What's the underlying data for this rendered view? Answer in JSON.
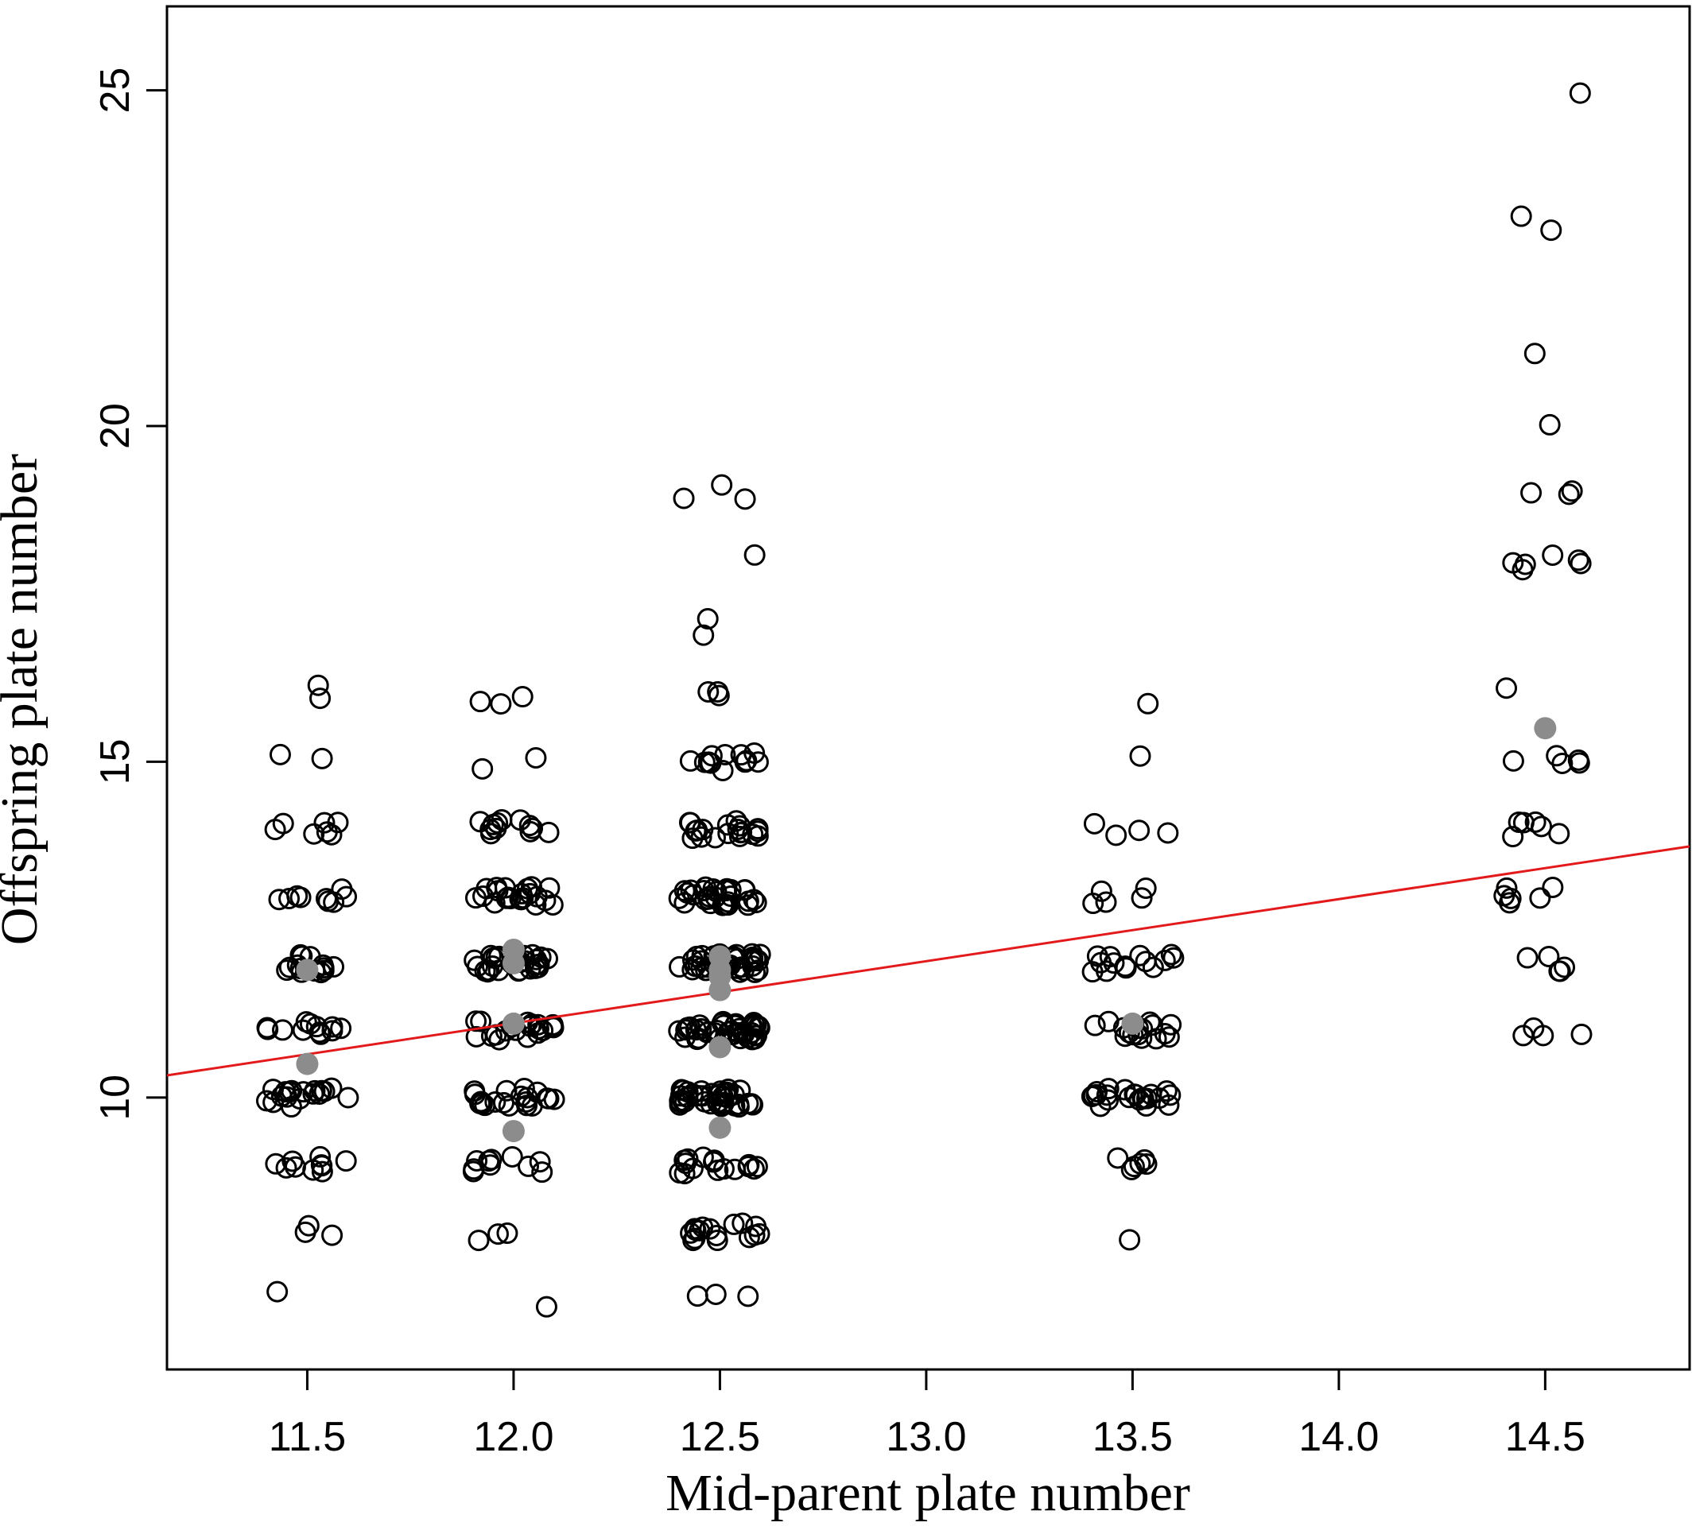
{
  "chart_data": {
    "type": "scatter",
    "xlabel": "Mid-parent plate number",
    "ylabel": "Offspring plate number",
    "xlim": [
      11.16,
      14.85
    ],
    "ylim": [
      5.95,
      26.25
    ],
    "x_ticks": [
      11.5,
      12.0,
      12.5,
      13.0,
      13.5,
      14.0,
      14.5
    ],
    "x_tick_labels": [
      "11.5",
      "12.0",
      "12.5",
      "13.0",
      "13.5",
      "14.0",
      "14.5"
    ],
    "y_ticks": [
      10,
      15,
      20,
      25
    ],
    "y_tick_labels": [
      "10",
      "15",
      "20",
      "25"
    ],
    "grid": false,
    "colors": {
      "points": "#000000",
      "means": "#8c8c8c",
      "fit_line": "#e31a1c"
    },
    "fit_line": {
      "x": [
        11.16,
        14.85
      ],
      "y": [
        10.33,
        13.74
      ]
    },
    "series": [
      {
        "style": "open-circle",
        "groups": [
          {
            "x": 11.5,
            "values": [
              {
                "y": 16,
                "n": 2
              },
              {
                "y": 15,
                "n": 2
              },
              {
                "y": 14,
                "n": 7
              },
              {
                "y": 13,
                "n": 9
              },
              {
                "y": 12,
                "n": 14
              },
              {
                "y": 11,
                "n": 12
              },
              {
                "y": 10,
                "n": 18
              },
              {
                "y": 9,
                "n": 10
              },
              {
                "y": 8,
                "n": 3
              },
              {
                "y": 7,
                "n": 1
              }
            ]
          },
          {
            "x": 12.0,
            "values": [
              {
                "y": 16,
                "n": 3
              },
              {
                "y": 15,
                "n": 2
              },
              {
                "y": 14,
                "n": 12
              },
              {
                "y": 13,
                "n": 22
              },
              {
                "y": 12,
                "n": 28
              },
              {
                "y": 11,
                "n": 20
              },
              {
                "y": 10,
                "n": 20
              },
              {
                "y": 9,
                "n": 10
              },
              {
                "y": 8,
                "n": 3
              },
              {
                "y": 7,
                "n": 1
              }
            ]
          },
          {
            "x": 12.5,
            "values": [
              {
                "y": 19,
                "n": 3
              },
              {
                "y": 18,
                "n": 1
              },
              {
                "y": 17,
                "n": 2
              },
              {
                "y": 16,
                "n": 3
              },
              {
                "y": 15,
                "n": 12
              },
              {
                "y": 14,
                "n": 20
              },
              {
                "y": 13,
                "n": 30
              },
              {
                "y": 12,
                "n": 40
              },
              {
                "y": 11,
                "n": 42
              },
              {
                "y": 10,
                "n": 40
              },
              {
                "y": 9,
                "n": 16
              },
              {
                "y": 8,
                "n": 16
              },
              {
                "y": 7,
                "n": 3
              }
            ]
          },
          {
            "x": 13.5,
            "values": [
              {
                "y": 16,
                "n": 1
              },
              {
                "y": 15,
                "n": 1
              },
              {
                "y": 14,
                "n": 4
              },
              {
                "y": 13,
                "n": 5
              },
              {
                "y": 12,
                "n": 14
              },
              {
                "y": 11,
                "n": 16
              },
              {
                "y": 10,
                "n": 22
              },
              {
                "y": 9,
                "n": 6
              },
              {
                "y": 8,
                "n": 1
              }
            ]
          },
          {
            "x": 14.5,
            "values": [
              {
                "y": 25,
                "n": 1
              },
              {
                "y": 23,
                "n": 2
              },
              {
                "y": 21,
                "n": 1
              },
              {
                "y": 20,
                "n": 1
              },
              {
                "y": 19,
                "n": 3
              },
              {
                "y": 18,
                "n": 6
              },
              {
                "y": 16,
                "n": 1
              },
              {
                "y": 15,
                "n": 5
              },
              {
                "y": 14,
                "n": 6
              },
              {
                "y": 13,
                "n": 6
              },
              {
                "y": 12,
                "n": 5
              },
              {
                "y": 11,
                "n": 4
              }
            ]
          }
        ]
      },
      {
        "style": "filled-circle",
        "points": [
          {
            "x": 11.5,
            "y": 11.9
          },
          {
            "x": 11.5,
            "y": 10.5
          },
          {
            "x": 12.0,
            "y": 12.2
          },
          {
            "x": 12.0,
            "y": 12.0
          },
          {
            "x": 12.0,
            "y": 11.1
          },
          {
            "x": 12.0,
            "y": 9.5
          },
          {
            "x": 12.5,
            "y": 12.1
          },
          {
            "x": 12.5,
            "y": 11.9
          },
          {
            "x": 12.5,
            "y": 11.8
          },
          {
            "x": 12.5,
            "y": 11.6
          },
          {
            "x": 12.5,
            "y": 10.75
          },
          {
            "x": 12.5,
            "y": 9.55
          },
          {
            "x": 13.5,
            "y": 11.1
          },
          {
            "x": 14.5,
            "y": 15.5
          }
        ]
      }
    ]
  }
}
